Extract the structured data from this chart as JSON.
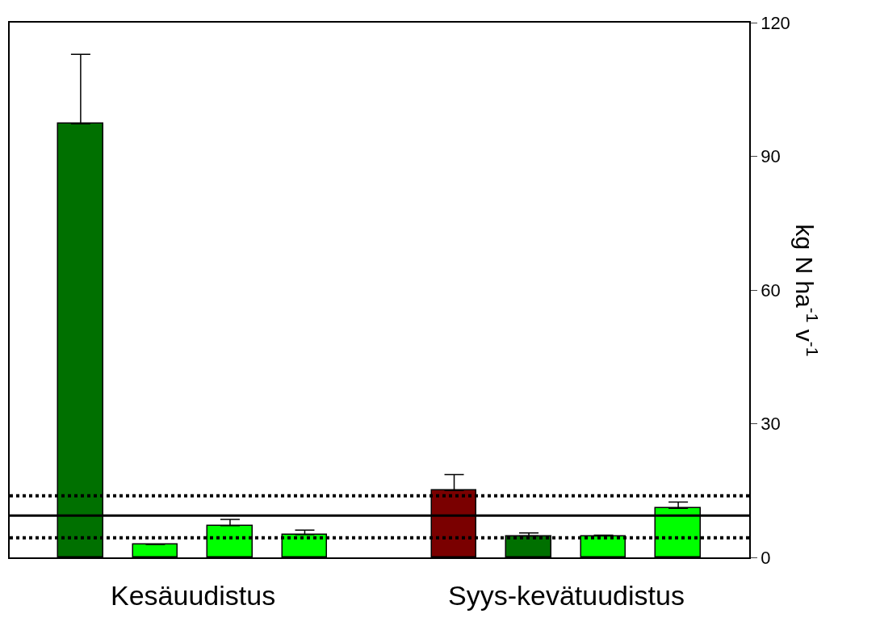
{
  "chart_data": {
    "type": "bar",
    "ylabel": "kg N ha$^{-1}$ v$^{-1}$",
    "categories": [
      null,
      null,
      null,
      null,
      null,
      null,
      null,
      null,
      null
    ],
    "values": [
      97.3,
      2.9,
      7.1,
      5.1,
      null,
      15.0,
      4.8,
      4.8,
      11.0
    ],
    "colors": [
      "#007000",
      "#00ff00",
      "#00ff00",
      "#00ff00",
      "#ffffff",
      "#7a0000",
      "#007000",
      "#00ff00",
      "#00ff00"
    ],
    "errors": [
      [
        97.3,
        112.9
      ],
      null,
      [
        7.1,
        8.5
      ],
      [
        5.1,
        6.1
      ],
      null,
      [
        15.0,
        18.6
      ],
      [
        4.8,
        5.5
      ],
      [
        4.8,
        5.0
      ],
      [
        11.0,
        12.4
      ]
    ],
    "ylim": [
      0,
      120
    ],
    "yticks": [
      0,
      30,
      60,
      90,
      120
    ],
    "ref_lines": [
      {
        "axis": "y",
        "value": 9.4,
        "color": "#000000",
        "line_style": "solid"
      },
      {
        "axis": "y",
        "value": 13.8,
        "color": "#000000",
        "line_style": "dotted"
      },
      {
        "axis": "y",
        "value": 4.4,
        "color": "#000000",
        "line_style": "dotted"
      }
    ],
    "annotations": [
      "Kesäuudistus",
      "Syys-kevätuudistus"
    ],
    "legend": false
  }
}
